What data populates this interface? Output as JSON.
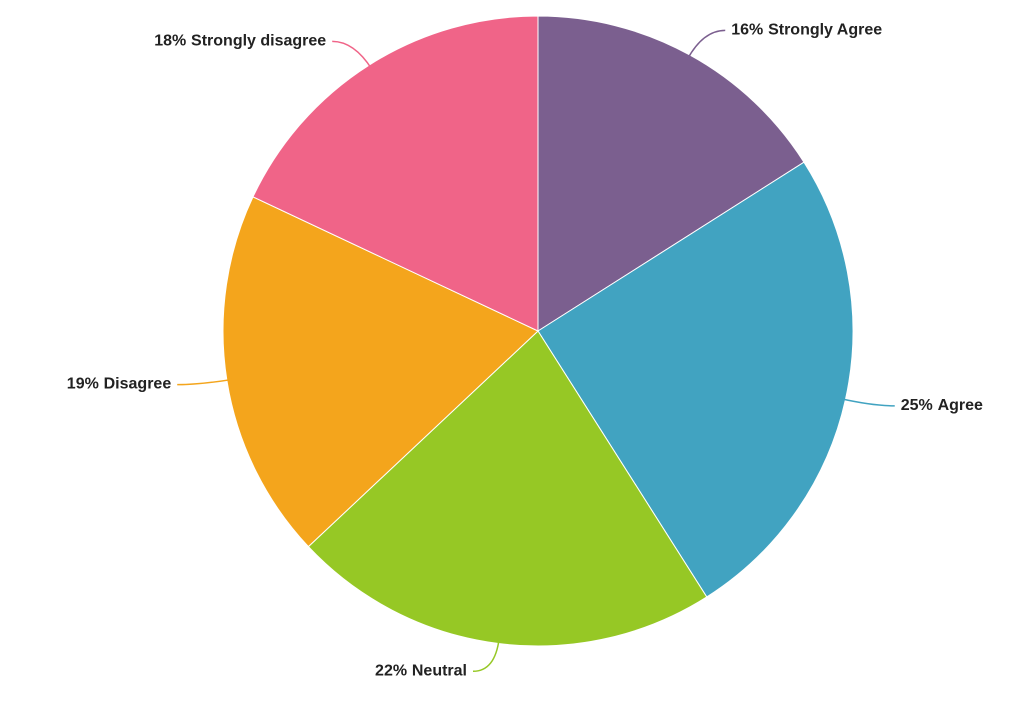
{
  "chart_data": {
    "type": "pie",
    "categories": [
      "Strongly Agree",
      "Agree",
      "Neutral",
      "Disagree",
      "Strongly disagree"
    ],
    "values": [
      16,
      25,
      22,
      19,
      18
    ],
    "value_labels": [
      "16%",
      "25%",
      "22%",
      "19%",
      "18%"
    ],
    "colors": [
      "#7b5f8f",
      "#41a3c1",
      "#96c825",
      "#f4a51c",
      "#f06488"
    ]
  }
}
